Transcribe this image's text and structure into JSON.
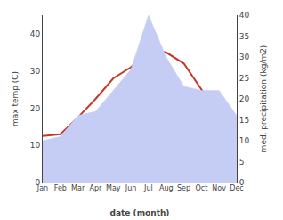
{
  "chart_data": {
    "type": "line",
    "categories": [
      "Jan",
      "Feb",
      "Mar",
      "Apr",
      "May",
      "Jun",
      "Jul",
      "Aug",
      "Sep",
      "Oct",
      "Nov",
      "Dec"
    ],
    "series": [
      {
        "type": "area",
        "color": "#c5cdf5",
        "axis": "y2",
        "values": [
          10,
          11,
          16,
          17,
          22,
          27,
          40,
          30,
          23,
          22,
          22,
          16
        ]
      },
      {
        "type": "line",
        "color": "#c0392b",
        "values": [
          12.5,
          13.0,
          17.5,
          22.5,
          28.0,
          31.0,
          35.5,
          35.0,
          32.0,
          25.0,
          18.0,
          13.5
        ]
      }
    ],
    "xlabel": "date (month)",
    "ylabel": "max temp (C)",
    "y2label": "med. precipitation (kg/m2)",
    "ylim": [
      0,
      45
    ],
    "yticks": [
      0,
      10,
      20,
      30,
      40
    ],
    "y2lim": [
      0,
      40
    ],
    "y2ticks": [
      0,
      5,
      10,
      15,
      20,
      25,
      30,
      35,
      40
    ],
    "grid": false
  }
}
